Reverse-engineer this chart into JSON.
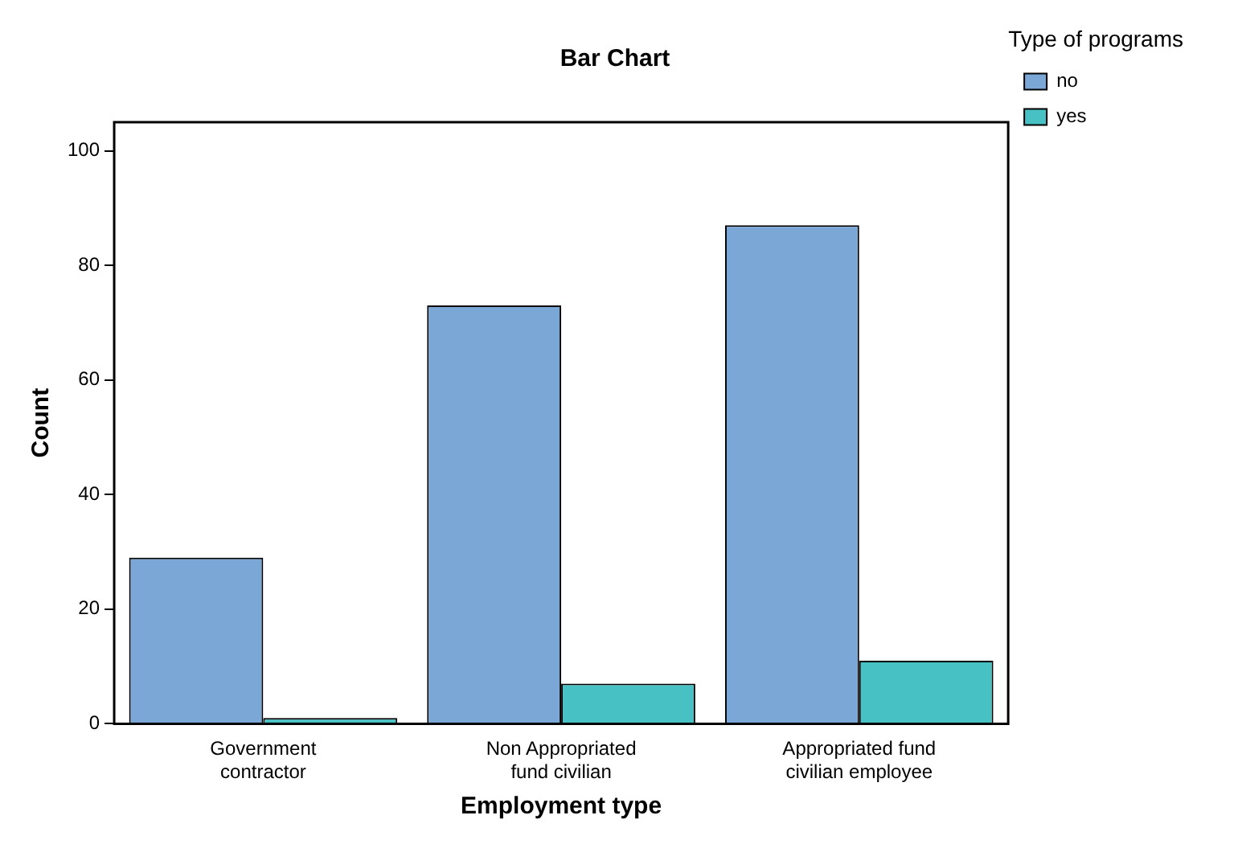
{
  "chart_data": {
    "type": "bar",
    "title": "Bar Chart",
    "xlabel": "Employment type",
    "ylabel": "Count",
    "legend_title": "Type of programs",
    "categories": [
      "Government contractor",
      "Non Appropriated fund civilian",
      "Appropriated fund civilian employee"
    ],
    "series": [
      {
        "name": "no",
        "color": "#7ba7d7",
        "values": [
          29,
          73,
          87
        ]
      },
      {
        "name": "yes",
        "color": "#48c1c5",
        "values": [
          1,
          7,
          11
        ]
      }
    ],
    "ylim": [
      0,
      105
    ],
    "yticks": [
      0,
      20,
      40,
      60,
      80,
      100
    ],
    "grid": false,
    "legend": "top right"
  }
}
